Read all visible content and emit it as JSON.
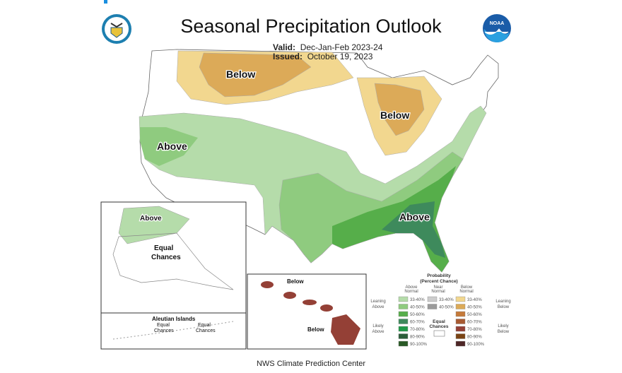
{
  "header": {
    "title": "Seasonal Precipitation Outlook",
    "valid_label": "Valid:",
    "valid_value": "Dec-Jan-Feb 2023-24",
    "issued_label": "Issued:",
    "issued_value": "October 19, 2023"
  },
  "logos": {
    "left": "department-of-commerce-seal",
    "right": "noaa-logo",
    "noaa_text": "NOAA"
  },
  "map": {
    "labels": {
      "below_north": "Below",
      "below_michigan": "Below",
      "above_west": "Above",
      "above_southeast": "Above"
    },
    "alaska": {
      "above": "Above",
      "equal": "Equal",
      "chances": "Chances"
    },
    "aleutian": {
      "title": "Aleutian Islands",
      "equal1": "Equal",
      "chances1": "Chances",
      "equal2": "Equal",
      "chances2": "Chances"
    },
    "hawaii": {
      "below1": "Below",
      "below2": "Below"
    }
  },
  "legend": {
    "title1": "Probability",
    "title2": "(Percent Chance)",
    "col_above": [
      "Above",
      "Normal"
    ],
    "col_near": [
      "Near",
      "Normal"
    ],
    "col_below": [
      "Below",
      "Normal"
    ],
    "leaning_above": [
      "Leaning",
      "Above"
    ],
    "likely_above": [
      "Likely",
      "Above"
    ],
    "leaning_below": [
      "Leaning",
      "Below"
    ],
    "likely_below": [
      "Likely",
      "Below"
    ],
    "equal_chances": [
      "Equal",
      "Chances"
    ],
    "above": [
      {
        "range": "33-40%",
        "color": "#b5dcaa"
      },
      {
        "range": "40-50%",
        "color": "#8fcb7f"
      },
      {
        "range": "50-60%",
        "color": "#56ae4a"
      },
      {
        "range": "60-70%",
        "color": "#3e8a5c"
      },
      {
        "range": "70-80%",
        "color": "#1f9a48"
      },
      {
        "range": "80-90%",
        "color": "#2b5d3a"
      },
      {
        "range": "90-100%",
        "color": "#2a5a26"
      }
    ],
    "near": [
      {
        "range": "33-40%",
        "color": "#cccccc"
      },
      {
        "range": "40-50%",
        "color": "#9a9a9a"
      }
    ],
    "below": [
      {
        "range": "33-40%",
        "color": "#f2d78f"
      },
      {
        "range": "40-50%",
        "color": "#dcaa58"
      },
      {
        "range": "50-60%",
        "color": "#c57a3a"
      },
      {
        "range": "60-70%",
        "color": "#a85a32"
      },
      {
        "range": "70-80%",
        "color": "#944036"
      },
      {
        "range": "80-90%",
        "color": "#7a4414"
      },
      {
        "range": "90-100%",
        "color": "#4e2626"
      }
    ]
  },
  "footer": "NWS Climate Prediction Center"
}
